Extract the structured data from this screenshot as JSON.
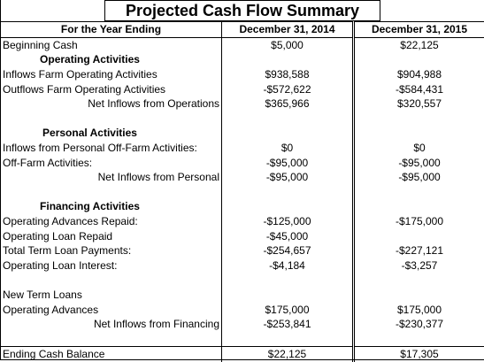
{
  "title": "Projected Cash Flow Summary",
  "header": {
    "label": "For the Year Ending",
    "columns": [
      "December 31, 2014",
      "December 31, 2015"
    ]
  },
  "rows": [
    {
      "label": "Beginning Cash",
      "values": [
        "$5,000",
        "$22,125"
      ]
    },
    {
      "label": "Operating Activities"
    },
    {
      "label": "Inflows Farm Operating Activities",
      "values": [
        "$938,588",
        "$904,988"
      ]
    },
    {
      "label": "Outflows Farm Operating Activities",
      "values": [
        "-$572,622",
        "-$584,431"
      ]
    },
    {
      "label": "Net Inflows from Operations",
      "values": [
        "$365,966",
        "$320,557"
      ]
    },
    {
      "label": "Personal Activities"
    },
    {
      "label": "Inflows from Personal Off-Farm Activities:",
      "values": [
        "$0",
        "$0"
      ]
    },
    {
      "label": "Off-Farm Activities:",
      "values": [
        "-$95,000",
        "-$95,000"
      ]
    },
    {
      "label": "Net Inflows from Personal",
      "values": [
        "-$95,000",
        "-$95,000"
      ]
    },
    {
      "label": "Financing Activities"
    },
    {
      "label": "Operating Advances Repaid:",
      "values": [
        "-$125,000",
        "-$175,000"
      ]
    },
    {
      "label": "Operating Loan Repaid",
      "values": [
        "-$45,000"
      ]
    },
    {
      "label": "Total Term Loan Payments:",
      "values": [
        "-$254,657",
        "-$227,121"
      ]
    },
    {
      "label": "Operating Loan Interest:",
      "values": [
        "-$4,184",
        "-$3,257"
      ]
    },
    {
      "label": "New Term Loans"
    },
    {
      "label": "Operating Advances",
      "values": [
        "$175,000",
        "$175,000"
      ]
    },
    {
      "label": "Net Inflows from Financing",
      "values": [
        "-$253,841",
        "-$230,377"
      ]
    },
    {
      "label": "Ending Cash Balance",
      "values": [
        "$22,125",
        "$17,305"
      ]
    }
  ]
}
